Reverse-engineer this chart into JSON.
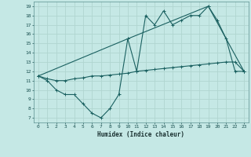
{
  "xlabel": "Humidex (Indice chaleur)",
  "background_color": "#c5e8e5",
  "grid_color": "#b0d5d0",
  "line_color": "#1a6060",
  "xlim": [
    -0.5,
    23.5
  ],
  "ylim": [
    6.5,
    19.5
  ],
  "xticks": [
    0,
    1,
    2,
    3,
    4,
    5,
    6,
    7,
    8,
    9,
    10,
    11,
    12,
    13,
    14,
    15,
    16,
    17,
    18,
    19,
    20,
    21,
    22,
    23
  ],
  "yticks": [
    7,
    8,
    9,
    10,
    11,
    12,
    13,
    14,
    15,
    16,
    17,
    18,
    19
  ],
  "series1_x": [
    0,
    1,
    2,
    3,
    4,
    5,
    6,
    7,
    8,
    9,
    10,
    11,
    12,
    13,
    14,
    15,
    16,
    17,
    18,
    19,
    20,
    21,
    22,
    23
  ],
  "series1_y": [
    11.5,
    11.0,
    10.0,
    9.5,
    9.5,
    8.5,
    7.5,
    7.0,
    8.0,
    9.5,
    15.5,
    12.0,
    18.0,
    17.0,
    18.5,
    17.0,
    17.5,
    18.0,
    18.0,
    19.0,
    17.5,
    15.5,
    12.0,
    12.0
  ],
  "series2_x": [
    0,
    1,
    2,
    3,
    4,
    5,
    6,
    7,
    8,
    9,
    10,
    11,
    12,
    13,
    14,
    15,
    16,
    17,
    18,
    19,
    20,
    21,
    22,
    23
  ],
  "series2_y": [
    11.5,
    11.2,
    11.0,
    11.0,
    11.2,
    11.3,
    11.5,
    11.5,
    11.6,
    11.7,
    11.8,
    12.0,
    12.1,
    12.2,
    12.3,
    12.4,
    12.5,
    12.6,
    12.7,
    12.8,
    12.9,
    13.0,
    13.0,
    12.0
  ],
  "series3_x": [
    0,
    10,
    19,
    23
  ],
  "series3_y": [
    11.5,
    15.5,
    19.0,
    12.0
  ]
}
